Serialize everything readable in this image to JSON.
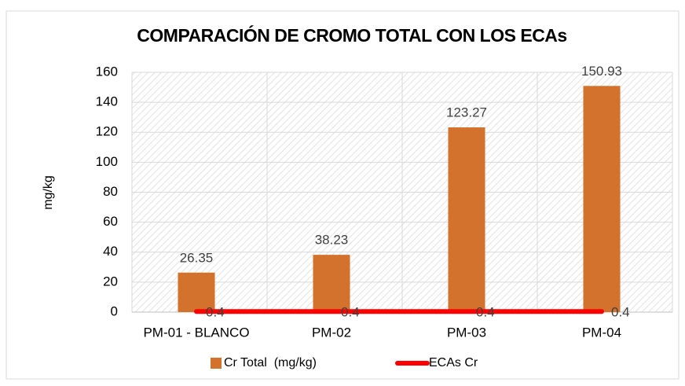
{
  "chart_data": {
    "type": "bar",
    "title": "COMPARACIÓN DE CROMO TOTAL CON LOS ECAs",
    "y_label": "mg/kg",
    "categories": [
      "PM-01 - BLANCO",
      "PM-02",
      "PM-03",
      "PM-04"
    ],
    "series": [
      {
        "name": "Cr Total  (mg/kg)",
        "type": "bar",
        "color": "#d2722c",
        "values": [
          26.35,
          38.23,
          123.27,
          150.93
        ]
      },
      {
        "name": "ECAs Cr",
        "type": "line",
        "color": "#ff0000",
        "values": [
          0.4,
          0.4,
          0.4,
          0.4
        ]
      }
    ],
    "ylim": [
      0,
      160
    ],
    "yticks": [
      0,
      20,
      40,
      60,
      80,
      100,
      120,
      140,
      160
    ],
    "grid": true,
    "legend": "bottom"
  }
}
